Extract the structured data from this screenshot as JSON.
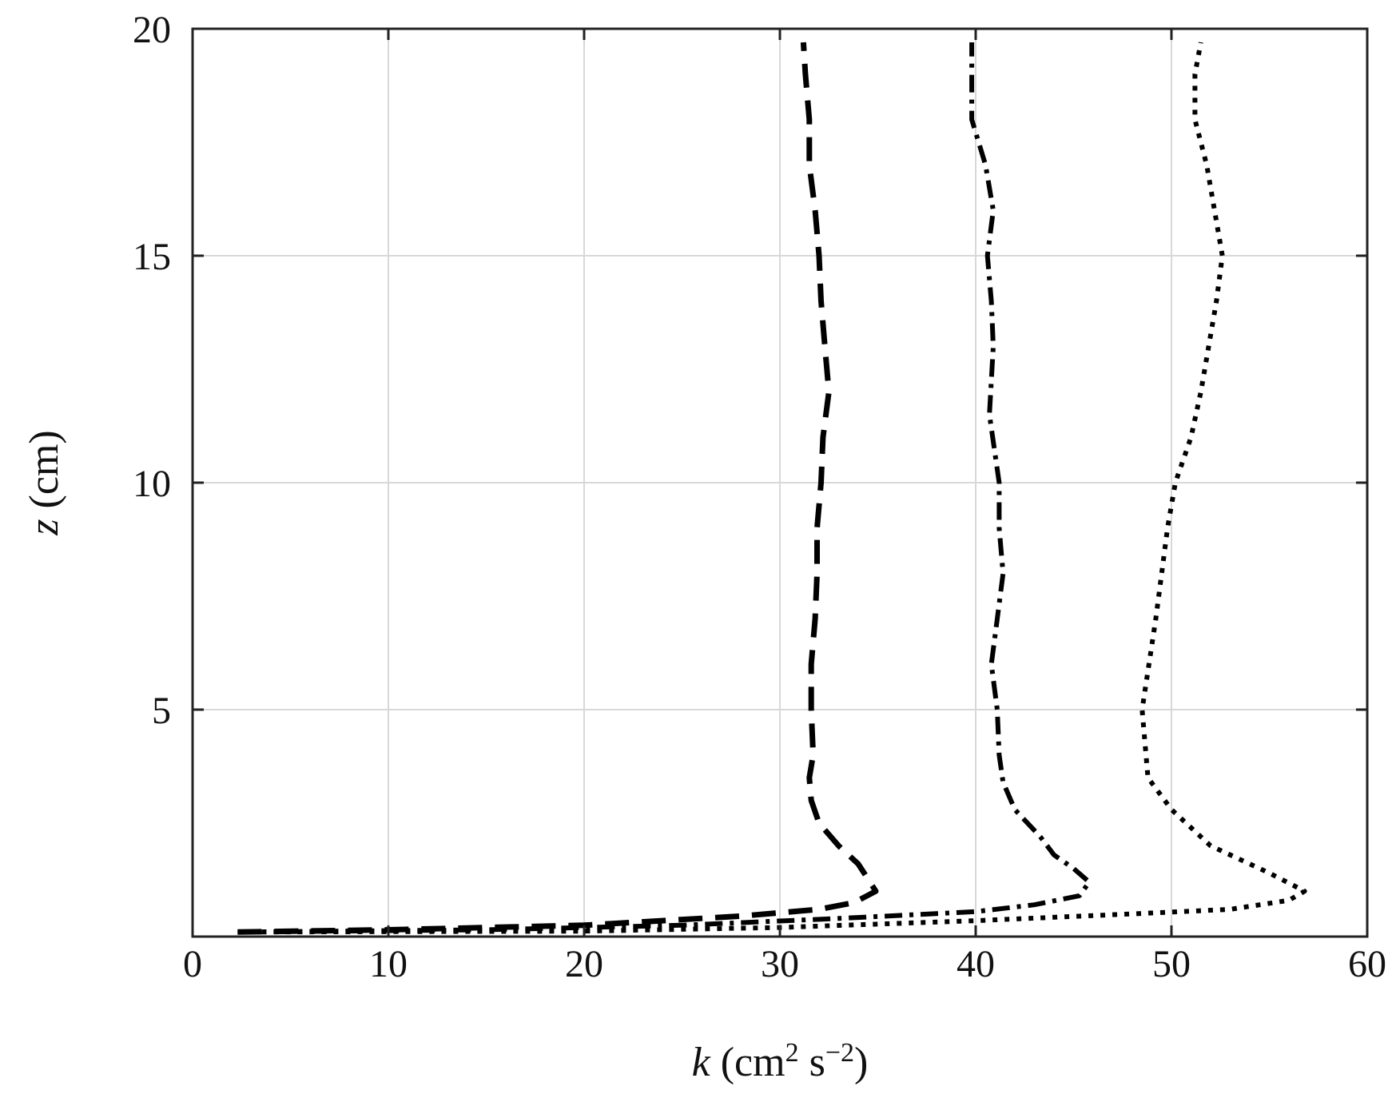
{
  "chart_data": {
    "type": "line",
    "title": "",
    "xlabel": {
      "variable": "k",
      "unit_open": " (cm",
      "unit_exp1": "2",
      "unit_mid": " s",
      "unit_exp2": "−2",
      "unit_close": ")"
    },
    "ylabel": {
      "variable": "z",
      "unit": " (cm)"
    },
    "xlim": [
      0,
      60
    ],
    "ylim": [
      0,
      20
    ],
    "xticks": [
      0,
      10,
      20,
      30,
      40,
      50,
      60
    ],
    "yticks": [
      5,
      10,
      15,
      20
    ],
    "xtick_labels": [
      "0",
      "10",
      "20",
      "30",
      "40",
      "50",
      "60"
    ],
    "ytick_labels": [
      "5",
      "10",
      "15",
      "20"
    ],
    "grid": true,
    "legend": "none",
    "colors": {
      "line": "#000000",
      "grid": "#d8d8d8",
      "axes": "#222222"
    },
    "series": [
      {
        "style": "long-dash",
        "points": [
          [
            2.3,
            0.1
          ],
          [
            10,
            0.15
          ],
          [
            20,
            0.25
          ],
          [
            28,
            0.45
          ],
          [
            32,
            0.6
          ],
          [
            33.8,
            0.75
          ],
          [
            34.9,
            1.0
          ],
          [
            34.6,
            1.2
          ],
          [
            34,
            1.6
          ],
          [
            33,
            2.0
          ],
          [
            32,
            2.5
          ],
          [
            31.6,
            3.0
          ],
          [
            31.5,
            3.5
          ],
          [
            31.7,
            4.0
          ],
          [
            31.6,
            5.0
          ],
          [
            31.6,
            6.0
          ],
          [
            31.8,
            7.0
          ],
          [
            31.9,
            8.0
          ],
          [
            31.9,
            9.0
          ],
          [
            32.1,
            10.0
          ],
          [
            32.2,
            11.0
          ],
          [
            32.5,
            12.0
          ],
          [
            32.3,
            13.0
          ],
          [
            32.1,
            14.0
          ],
          [
            32.0,
            15.0
          ],
          [
            31.8,
            16.0
          ],
          [
            31.5,
            17.0
          ],
          [
            31.5,
            18.0
          ],
          [
            31.3,
            19.0
          ],
          [
            31.2,
            19.7
          ]
        ]
      },
      {
        "style": "dash-dot",
        "points": [
          [
            2.3,
            0.1
          ],
          [
            15,
            0.15
          ],
          [
            25,
            0.25
          ],
          [
            33,
            0.4
          ],
          [
            40,
            0.55
          ],
          [
            43,
            0.7
          ],
          [
            45.3,
            0.9
          ],
          [
            45.8,
            1.2
          ],
          [
            45,
            1.5
          ],
          [
            44,
            1.8
          ],
          [
            43.3,
            2.2
          ],
          [
            42,
            2.8
          ],
          [
            41.4,
            3.4
          ],
          [
            41.2,
            4.0
          ],
          [
            41.1,
            5.0
          ],
          [
            40.8,
            6.0
          ],
          [
            41.1,
            7.0
          ],
          [
            41.4,
            8.0
          ],
          [
            41.2,
            9.0
          ],
          [
            41.2,
            10.0
          ],
          [
            40.7,
            11.5
          ],
          [
            40.9,
            13.0
          ],
          [
            40.8,
            14.0
          ],
          [
            40.6,
            15.0
          ],
          [
            40.9,
            16.0
          ],
          [
            40.5,
            17.0
          ],
          [
            39.8,
            18.0
          ],
          [
            39.8,
            19.0
          ],
          [
            39.8,
            19.7
          ]
        ]
      },
      {
        "style": "dotted",
        "points": [
          [
            2.3,
            0.1
          ],
          [
            20,
            0.12
          ],
          [
            30,
            0.2
          ],
          [
            40,
            0.35
          ],
          [
            48,
            0.5
          ],
          [
            53,
            0.6
          ],
          [
            56,
            0.8
          ],
          [
            56.8,
            1.0
          ],
          [
            55,
            1.4
          ],
          [
            52,
            2.0
          ],
          [
            50,
            2.8
          ],
          [
            48.8,
            3.5
          ],
          [
            48.5,
            5.0
          ],
          [
            49.2,
            7.0
          ],
          [
            49.8,
            9.0
          ],
          [
            50.2,
            10.0
          ],
          [
            51,
            11.0
          ],
          [
            51.5,
            12.0
          ],
          [
            52.3,
            14.0
          ],
          [
            52.6,
            15.0
          ],
          [
            52.2,
            16.0
          ],
          [
            51.8,
            17.0
          ],
          [
            51.2,
            18.0
          ],
          [
            51.2,
            19.0
          ],
          [
            51.5,
            19.7
          ]
        ]
      }
    ]
  }
}
